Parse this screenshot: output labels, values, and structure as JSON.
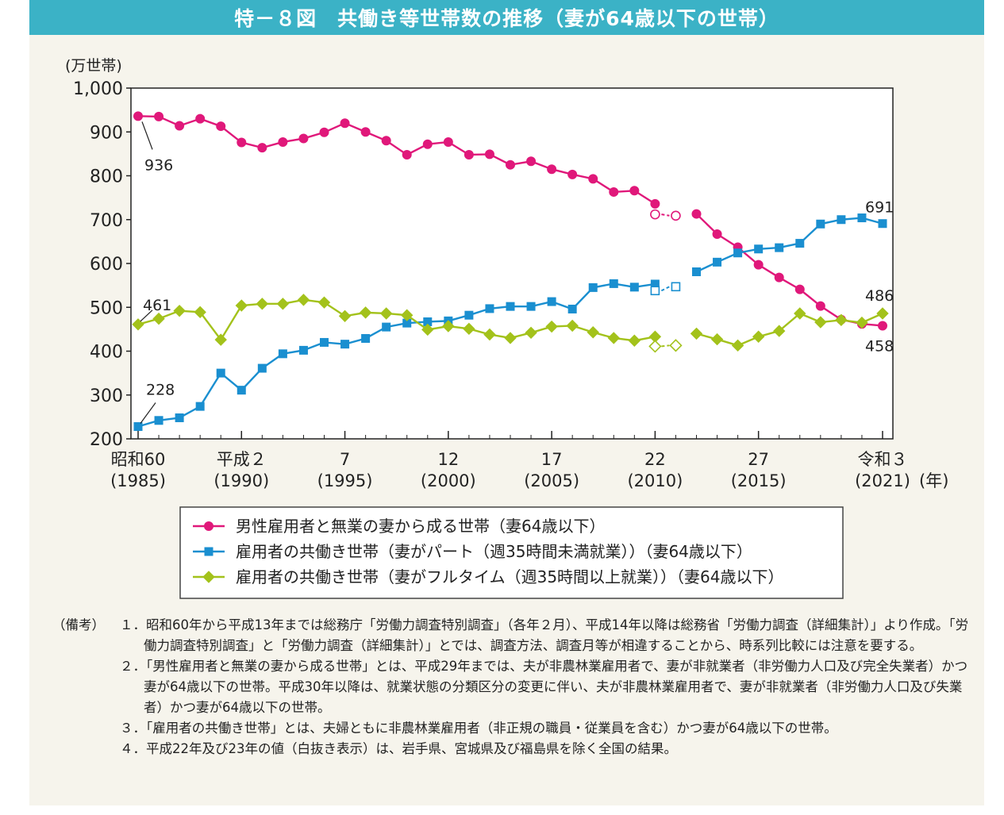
{
  "header": {
    "title": "特－８図　共働き等世帯数の推移（妻が64歳以下の世帯）"
  },
  "chart_data": {
    "type": "line",
    "title": "",
    "ylabel": "(万世帯)",
    "xlabel_unit": "(年)",
    "ylim": [
      200,
      1000
    ],
    "y_ticks": [
      "200",
      "300",
      "400",
      "500",
      "600",
      "700",
      "800",
      "900",
      "1,000"
    ],
    "y_tick_values": [
      200,
      300,
      400,
      500,
      600,
      700,
      800,
      900,
      1000
    ],
    "x": [
      1985,
      1986,
      1987,
      1988,
      1989,
      1990,
      1991,
      1992,
      1993,
      1994,
      1995,
      1996,
      1997,
      1998,
      1999,
      2000,
      2001,
      2002,
      2003,
      2004,
      2005,
      2006,
      2007,
      2008,
      2009,
      2010,
      2011,
      2012,
      2013,
      2014,
      2015,
      2016,
      2017,
      2018,
      2019,
      2020,
      2021
    ],
    "x_ticks": [
      {
        "x": 1985,
        "line1": "昭和60",
        "line2": "(1985)"
      },
      {
        "x": 1990,
        "line1": "平成２",
        "line2": "(1990)"
      },
      {
        "x": 1995,
        "line1": "7",
        "line2": "(1995)"
      },
      {
        "x": 2000,
        "line1": "12",
        "line2": "(2000)"
      },
      {
        "x": 2005,
        "line1": "17",
        "line2": "(2005)"
      },
      {
        "x": 2010,
        "line1": "22",
        "line2": "(2010)"
      },
      {
        "x": 2015,
        "line1": "27",
        "line2": "(2015)"
      },
      {
        "x": 2021,
        "line1": "令和３",
        "line2": "(2021)"
      }
    ],
    "hollow_years": [
      2010,
      2011
    ],
    "series": [
      {
        "name": "男性雇用者と無業の妻から成る世帯（妻64歳以下）",
        "color": "#e0187a",
        "marker": "circle",
        "values": [
          936,
          935,
          914,
          930,
          913,
          876,
          864,
          877,
          885,
          899,
          920,
          900,
          880,
          848,
          872,
          877,
          848,
          849,
          825,
          833,
          815,
          803,
          793,
          763,
          766,
          712,
          709,
          713,
          667,
          637,
          597,
          568,
          541,
          503,
          472,
          462,
          458
        ],
        "solid_overrides": {
          "2010": 736
        }
      },
      {
        "name": "雇用者の共働き世帯（妻がパート（週35時間未満就業））（妻64歳以下）",
        "color": "#1a8fd0",
        "marker": "square",
        "values": [
          228,
          242,
          248,
          274,
          350,
          311,
          361,
          394,
          402,
          420,
          416,
          429,
          455,
          464,
          467,
          469,
          482,
          497,
          502,
          502,
          513,
          496,
          545,
          554,
          546,
          538,
          547,
          581,
          603,
          624,
          633,
          636,
          646,
          690,
          700,
          704,
          691
        ],
        "solid_overrides": {
          "2010": 553
        }
      },
      {
        "name": "雇用者の共働き世帯（妻がフルタイム（週35時間以上就業））（妻64歳以下）",
        "color": "#a3c21b",
        "marker": "diamond",
        "values": [
          461,
          474,
          492,
          489,
          426,
          504,
          508,
          508,
          517,
          511,
          480,
          488,
          486,
          482,
          449,
          457,
          451,
          438,
          430,
          442,
          456,
          458,
          443,
          430,
          424,
          411,
          413,
          440,
          427,
          413,
          433,
          446,
          486,
          466,
          471,
          465,
          486
        ],
        "solid_overrides": {
          "2010": 433
        }
      }
    ],
    "annotations": [
      {
        "text": "936",
        "year": 1985,
        "series": 0
      },
      {
        "text": "461",
        "year": 1985,
        "series": 2
      },
      {
        "text": "228",
        "year": 1985,
        "series": 1
      },
      {
        "text": "691",
        "year": 2021,
        "series": 1
      },
      {
        "text": "486",
        "year": 2021,
        "series": 2
      },
      {
        "text": "458",
        "year": 2021,
        "series": 0
      }
    ]
  },
  "notes": {
    "label": "（備考）",
    "items": [
      "１．昭和60年から平成13年までは総務庁「労働力調査特別調査」（各年２月）、平成14年以降は総務省「労働力調査（詳細集計）」より作成。「労働力調査特別調査」と「労働力調査（詳細集計）」とでは、調査方法、調査月等が相違することから、時系列比較には注意を要する。",
      "２．「男性雇用者と無業の妻から成る世帯」とは、平成29年までは、夫が非農林業雇用者で、妻が非就業者（非労働力人口及び完全失業者）かつ妻が64歳以下の世帯。平成30年以降は、就業状態の分類区分の変更に伴い、夫が非農林業雇用者で、妻が非就業者（非労働力人口及び失業者）かつ妻が64歳以下の世帯。",
      "３．「雇用者の共働き世帯」とは、夫婦ともに非農林業雇用者（非正規の職員・従業員を含む）かつ妻が64歳以下の世帯。",
      "４．平成22年及び23年の値（白抜き表示）は、岩手県、宮城県及び福島県を除く全国の結果。"
    ]
  }
}
